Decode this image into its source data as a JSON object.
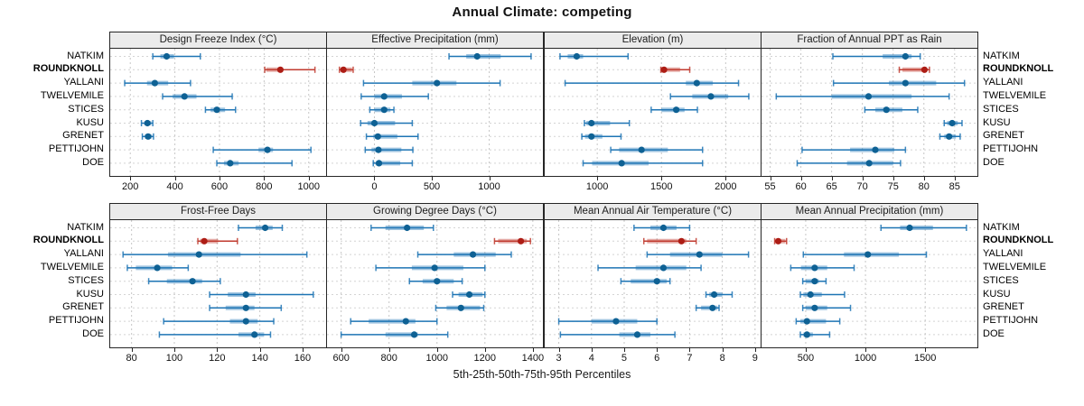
{
  "title": "Annual Climate: competing",
  "caption": "5th-25th-50th-75th-95th Percentiles",
  "highlight_site": "ROUNDKNOLL",
  "colors": {
    "normal_line": "#1d74b4",
    "normal_band": "rgba(29,116,180,0.42)",
    "normal_dot": "#0e6194",
    "highlight_line": "#c03a2e",
    "highlight_band": "rgba(192,58,46,0.42)",
    "highlight_dot": "#ad1d15",
    "strip_bg": "#ebebeb",
    "panel_border": "#262626",
    "grid_h": "#d4d4d4",
    "grid_v": "#c6c6c6"
  },
  "sites": [
    "NATKIM",
    "ROUNDKNOLL",
    "YALLANI",
    "TWELVEMILE",
    "STICES",
    "KUSU",
    "GRENET",
    "PETTIJOHN",
    "DOE"
  ],
  "chart_data": {
    "type": "dotplot-percentiles",
    "percentile_labels": [
      "5th",
      "25th",
      "50th",
      "75th",
      "95th"
    ],
    "legend_position": "none",
    "grid": "dashed-at-ticks",
    "panels": [
      {
        "title": "Design Freeze Index (°C)",
        "row": 0,
        "col": 0,
        "domain": [
          110,
          1078
        ],
        "ticks": [
          200,
          400,
          600,
          800,
          1000
        ],
        "series": [
          {
            "site": "NATKIM",
            "p": [
              301,
              335,
              363,
              396,
              514
            ]
          },
          {
            "site": "ROUNDKNOLL",
            "p": [
              803,
              810,
              873,
              885,
              1028
            ]
          },
          {
            "site": "YALLANI",
            "p": [
              175,
              275,
              310,
              370,
              470
            ]
          },
          {
            "site": "TWELVEMILE",
            "p": [
              345,
              390,
              443,
              497,
              657
            ]
          },
          {
            "site": "STICES",
            "p": [
              537,
              560,
              588,
              625,
              672
            ]
          },
          {
            "site": "KUSU",
            "p": [
              250,
              263,
              277,
              294,
              301
            ]
          },
          {
            "site": "GRENET",
            "p": [
              254,
              265,
              280,
              297,
              304
            ]
          },
          {
            "site": "PETTIJOHN",
            "p": [
              572,
              775,
              815,
              840,
              1010
            ]
          },
          {
            "site": "DOE",
            "p": [
              588,
              620,
              648,
              686,
              925
            ]
          }
        ]
      },
      {
        "title": "Effective Precipitation (mm)",
        "row": 0,
        "col": 1,
        "domain": [
          -413,
          1468
        ],
        "ticks": [
          0,
          500,
          1000
        ],
        "series": [
          {
            "site": "NATKIM",
            "p": [
              650,
              800,
              895,
              1100,
              1365
            ]
          },
          {
            "site": "ROUNDKNOLL",
            "p": [
              -305,
              -295,
              -270,
              -195,
              -185
            ]
          },
          {
            "site": "YALLANI",
            "p": [
              -95,
              330,
              545,
              715,
              1095
            ]
          },
          {
            "site": "TWELVEMILE",
            "p": [
              -115,
              0,
              85,
              240,
              470
            ]
          },
          {
            "site": "STICES",
            "p": [
              -40,
              0,
              85,
              140,
              170
            ]
          },
          {
            "site": "KUSU",
            "p": [
              -120,
              -60,
              0,
              180,
              330
            ]
          },
          {
            "site": "GRENET",
            "p": [
              -70,
              -10,
              30,
              200,
              380
            ]
          },
          {
            "site": "PETTIJOHN",
            "p": [
              -80,
              -25,
              35,
              235,
              335
            ]
          },
          {
            "site": "DOE",
            "p": [
              -10,
              10,
              40,
              225,
              330
            ]
          }
        ]
      },
      {
        "title": "Elevation (m)",
        "row": 0,
        "col": 2,
        "domain": [
          591,
          2272
        ],
        "ticks": [
          1000,
          1500,
          2000
        ],
        "series": [
          {
            "site": "NATKIM",
            "p": [
              710,
              770,
              840,
              890,
              1240
            ]
          },
          {
            "site": "ROUNDKNOLL",
            "p": [
              1495,
              1505,
              1520,
              1645,
              1720
            ]
          },
          {
            "site": "YALLANI",
            "p": [
              750,
              1690,
              1775,
              1900,
              2100
            ]
          },
          {
            "site": "TWELVEMILE",
            "p": [
              1570,
              1740,
              1885,
              2020,
              2180
            ]
          },
          {
            "site": "STICES",
            "p": [
              1420,
              1500,
              1615,
              1680,
              1780
            ]
          },
          {
            "site": "KUSU",
            "p": [
              900,
              915,
              955,
              1100,
              1250
            ]
          },
          {
            "site": "GRENET",
            "p": [
              880,
              905,
              955,
              1040,
              1185
            ]
          },
          {
            "site": "PETTIJOHN",
            "p": [
              1105,
              1170,
              1345,
              1550,
              1820
            ]
          },
          {
            "site": "DOE",
            "p": [
              890,
              960,
              1190,
              1400,
              1820
            ]
          }
        ]
      },
      {
        "title": "Fraction of Annual PPT as Rain",
        "row": 0,
        "col": 3,
        "domain": [
          53.6,
          88.7
        ],
        "ticks": [
          55,
          60,
          65,
          70,
          75,
          80,
          85
        ],
        "series": [
          {
            "site": "NATKIM",
            "p": [
              65.2,
              73.3,
              77.0,
              78.0,
              79.4
            ]
          },
          {
            "site": "ROUNDKNOLL",
            "p": [
              76.0,
              76.5,
              80.1,
              80.5,
              80.9
            ]
          },
          {
            "site": "YALLANI",
            "p": [
              65.3,
              74.3,
              77.0,
              82.0,
              86.6
            ]
          },
          {
            "site": "TWELVEMILE",
            "p": [
              56.0,
              65.0,
              71.0,
              78.0,
              84.1
            ]
          },
          {
            "site": "STICES",
            "p": [
              70.4,
              72.1,
              73.9,
              76.5,
              79.0
            ]
          },
          {
            "site": "KUSU",
            "p": [
              83.3,
              83.8,
              84.6,
              85.5,
              86.2
            ]
          },
          {
            "site": "GRENET",
            "p": [
              82.6,
              83.3,
              84.1,
              85.2,
              85.9
            ]
          },
          {
            "site": "PETTIJOHN",
            "p": [
              60.2,
              68.0,
              72.1,
              75.2,
              77.0
            ]
          },
          {
            "site": "DOE",
            "p": [
              59.4,
              67.5,
              71.1,
              75.0,
              76.2
            ]
          }
        ]
      },
      {
        "title": "Frost-Free Days",
        "row": 1,
        "col": 0,
        "domain": [
          70,
          171
        ],
        "ticks": [
          80,
          100,
          120,
          140,
          160
        ],
        "series": [
          {
            "site": "NATKIM",
            "p": [
              130,
              138,
              142.5,
              146,
              150.5
            ]
          },
          {
            "site": "ROUNDKNOLL",
            "p": [
              111,
              112,
              114,
              120.5,
              129.5
            ]
          },
          {
            "site": "YALLANI",
            "p": [
              76,
              97,
              111.5,
              131,
              162
            ]
          },
          {
            "site": "TWELVEMILE",
            "p": [
              78,
              82,
              92,
              99,
              106.5
            ]
          },
          {
            "site": "STICES",
            "p": [
              88,
              96.5,
              108.5,
              113,
              121.5
            ]
          },
          {
            "site": "KUSU",
            "p": [
              116.5,
              125,
              133.5,
              138,
              165
            ]
          },
          {
            "site": "GRENET",
            "p": [
              116.5,
              124,
              133.5,
              137.5,
              150
            ]
          },
          {
            "site": "PETTIJOHN",
            "p": [
              95,
              126,
              133.5,
              139,
              146.5
            ]
          },
          {
            "site": "DOE",
            "p": [
              93,
              130,
              137.5,
              142,
              145
            ]
          }
        ]
      },
      {
        "title": "Growing Degree Days (°C)",
        "row": 1,
        "col": 1,
        "domain": [
          541,
          1442
        ],
        "ticks": [
          600,
          800,
          1000,
          1200,
          1400
        ],
        "series": [
          {
            "site": "NATKIM",
            "p": [
              725,
              785,
              875,
              945,
              985
            ]
          },
          {
            "site": "ROUNDKNOLL",
            "p": [
              1240,
              1255,
              1350,
              1375,
              1390
            ]
          },
          {
            "site": "YALLANI",
            "p": [
              920,
              1070,
              1150,
              1245,
              1310
            ]
          },
          {
            "site": "TWELVEMILE",
            "p": [
              745,
              895,
              990,
              1110,
              1200
            ]
          },
          {
            "site": "STICES",
            "p": [
              885,
              940,
              1000,
              1070,
              1105
            ]
          },
          {
            "site": "KUSU",
            "p": [
              1065,
              1090,
              1135,
              1190,
              1200
            ]
          },
          {
            "site": "GRENET",
            "p": [
              995,
              1040,
              1100,
              1180,
              1195
            ]
          },
          {
            "site": "PETTIJOHN",
            "p": [
              640,
              715,
              870,
              910,
              1000
            ]
          },
          {
            "site": "DOE",
            "p": [
              600,
              785,
              905,
              920,
              1045
            ]
          }
        ]
      },
      {
        "title": "Mean Annual Air Temperature (°C)",
        "row": 1,
        "col": 2,
        "domain": [
          2.57,
          9.17
        ],
        "ticks": [
          3,
          4,
          5,
          6,
          7,
          8,
          9
        ],
        "series": [
          {
            "site": "NATKIM",
            "p": [
              5.3,
              5.8,
              6.2,
              6.6,
              7.0
            ]
          },
          {
            "site": "ROUNDKNOLL",
            "p": [
              5.6,
              5.7,
              6.75,
              6.9,
              7.2
            ]
          },
          {
            "site": "YALLANI",
            "p": [
              5.7,
              6.4,
              7.3,
              8.0,
              8.8
            ]
          },
          {
            "site": "TWELVEMILE",
            "p": [
              4.2,
              5.35,
              6.2,
              6.9,
              7.35
            ]
          },
          {
            "site": "STICES",
            "p": [
              4.9,
              5.2,
              6.0,
              6.3,
              6.4
            ]
          },
          {
            "site": "KUSU",
            "p": [
              7.5,
              7.6,
              7.75,
              8.0,
              8.3
            ]
          },
          {
            "site": "GRENET",
            "p": [
              7.2,
              7.35,
              7.7,
              7.85,
              7.9
            ]
          },
          {
            "site": "PETTIJOHN",
            "p": [
              3.0,
              4.0,
              4.75,
              5.4,
              6.0
            ]
          },
          {
            "site": "DOE",
            "p": [
              3.05,
              4.85,
              5.4,
              5.8,
              6.55
            ]
          }
        ]
      },
      {
        "title": "Mean Annual Precipitation (mm)",
        "row": 1,
        "col": 3,
        "domain": [
          130,
          1937
        ],
        "ticks": [
          500,
          1000,
          1500
        ],
        "series": [
          {
            "site": "NATKIM",
            "p": [
              1130,
              1290,
              1370,
              1565,
              1845
            ]
          },
          {
            "site": "ROUNDKNOLL",
            "p": [
              240,
              250,
              270,
              330,
              340
            ]
          },
          {
            "site": "YALLANI",
            "p": [
              480,
              820,
              1020,
              1280,
              1510
            ]
          },
          {
            "site": "TWELVEMILE",
            "p": [
              375,
              460,
              575,
              680,
              905
            ]
          },
          {
            "site": "STICES",
            "p": [
              475,
              500,
              575,
              610,
              670
            ]
          },
          {
            "site": "KUSU",
            "p": [
              455,
              480,
              540,
              635,
              825
            ]
          },
          {
            "site": "GRENET",
            "p": [
              475,
              500,
              575,
              680,
              875
            ]
          },
          {
            "site": "PETTIJOHN",
            "p": [
              420,
              455,
              510,
              670,
              785
            ]
          },
          {
            "site": "DOE",
            "p": [
              455,
              480,
              510,
              560,
              700
            ]
          }
        ]
      }
    ]
  }
}
